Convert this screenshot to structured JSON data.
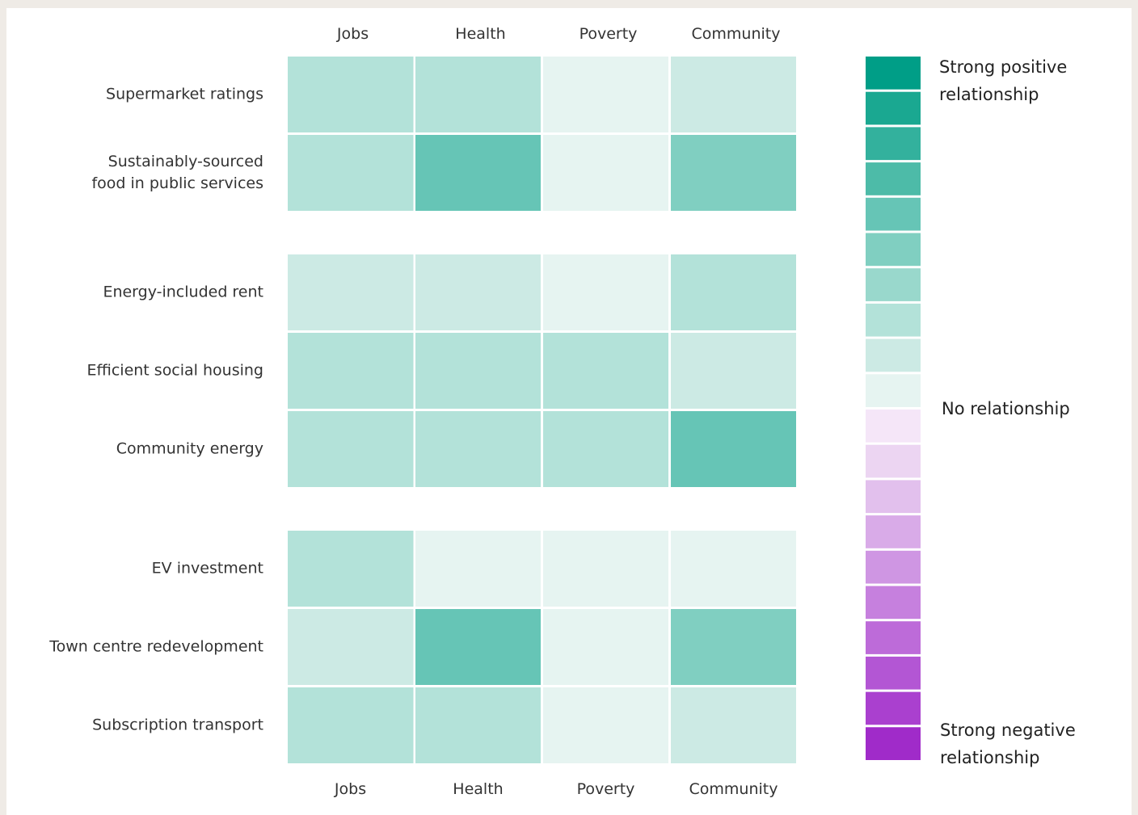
{
  "chart_data": {
    "type": "heatmap",
    "columns": [
      "Jobs",
      "Health",
      "Poverty",
      "Community"
    ],
    "groups": [
      {
        "rows": [
          "Supermarket ratings",
          "Sustainably-sourced\nfood in public services"
        ],
        "values": [
          [
            3,
            3,
            1,
            2
          ],
          [
            3,
            6,
            1,
            5
          ]
        ]
      },
      {
        "rows": [
          "Energy-included rent",
          "Efficient social housing",
          "Community energy"
        ],
        "values": [
          [
            2,
            2,
            1,
            3
          ],
          [
            3,
            3,
            3,
            2
          ],
          [
            3,
            3,
            3,
            6
          ]
        ]
      },
      {
        "rows": [
          "EV investment",
          "Town centre redevelopment",
          "Subscription transport"
        ],
        "values": [
          [
            3,
            1,
            1,
            1
          ],
          [
            2,
            6,
            1,
            5
          ],
          [
            3,
            3,
            1,
            2
          ]
        ]
      }
    ],
    "zlim": [
      -10,
      10
    ],
    "colors": [
      "#009e87",
      "#1aa891",
      "#33b19d",
      "#4dbba8",
      "#66c5b6",
      "#80cfc1",
      "#99d8cc",
      "#b3e2d9",
      "#cceae4",
      "#e6f4f1",
      "#f5e6f8",
      "#ecd5f2",
      "#e2c0ed",
      "#d9abe8",
      "#cf96e3",
      "#c680de",
      "#bd6bd9",
      "#b356d4",
      "#aa40cf",
      "#a02bc9"
    ],
    "legend_labels": {
      "top": "Strong positive\nrelationship",
      "middle": "No relationship",
      "bottom": "Strong negative\nrelationship"
    }
  }
}
